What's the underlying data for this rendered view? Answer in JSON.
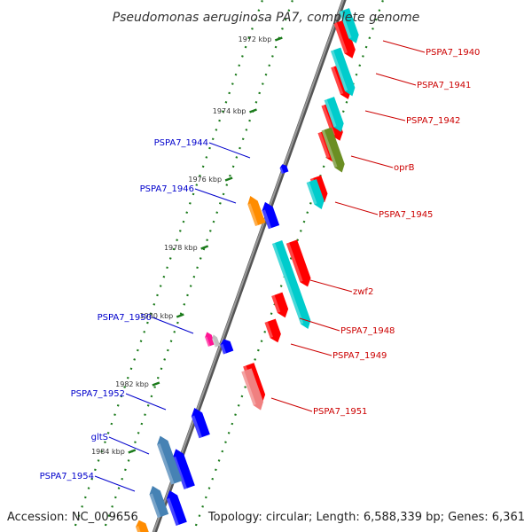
{
  "title": "Pseudomonas aeruginosa PA7, complete genome",
  "footer": {
    "accession": "Accession: NC_009656",
    "topology": "Topology: circular; Length: 6,588,339 bp; Genes: 6,361"
  },
  "ruler": {
    "unit": "kbp",
    "ticks": [
      "1972 kbp",
      "1974 kbp",
      "1976 kbp",
      "1978 kbp",
      "1980 kbp",
      "1982 kbp",
      "1984 kbp"
    ]
  },
  "colors": {
    "backbone": "#808080",
    "label_forward": "#0000cc",
    "label_reverse": "#cc0000",
    "tick": "#1a7a1a"
  },
  "genes": [
    {
      "name": "PSPA7_1940",
      "strand": "reverse",
      "color": "#ff0000"
    },
    {
      "name": "PSPA7_1941",
      "strand": "reverse",
      "color": "#ff0000"
    },
    {
      "name": "PSPA7_1942",
      "strand": "reverse",
      "color": "#ff0000"
    },
    {
      "name": "oprB",
      "strand": "reverse",
      "color": "#ff0000"
    },
    {
      "name": "PSPA7_1944",
      "strand": "forward",
      "color": "#0000ff"
    },
    {
      "name": "PSPA7_1945",
      "strand": "reverse",
      "color": "#ff0000"
    },
    {
      "name": "PSPA7_1946",
      "strand": "forward",
      "color": "#0000ff"
    },
    {
      "name": "zwf2",
      "strand": "reverse",
      "color": "#ff0000"
    },
    {
      "name": "PSPA7_1948",
      "strand": "reverse",
      "color": "#ff0000"
    },
    {
      "name": "PSPA7_1949",
      "strand": "reverse",
      "color": "#ff0000"
    },
    {
      "name": "PSPA7_1950",
      "strand": "forward",
      "color": "#0000ff"
    },
    {
      "name": "PSPA7_1951",
      "strand": "reverse",
      "color": "#ff0000"
    },
    {
      "name": "PSPA7_1952",
      "strand": "forward",
      "color": "#0000ff"
    },
    {
      "name": "gltS",
      "strand": "forward",
      "color": "#0000ff"
    },
    {
      "name": "PSPA7_1954",
      "strand": "forward",
      "color": "#0000ff"
    }
  ]
}
